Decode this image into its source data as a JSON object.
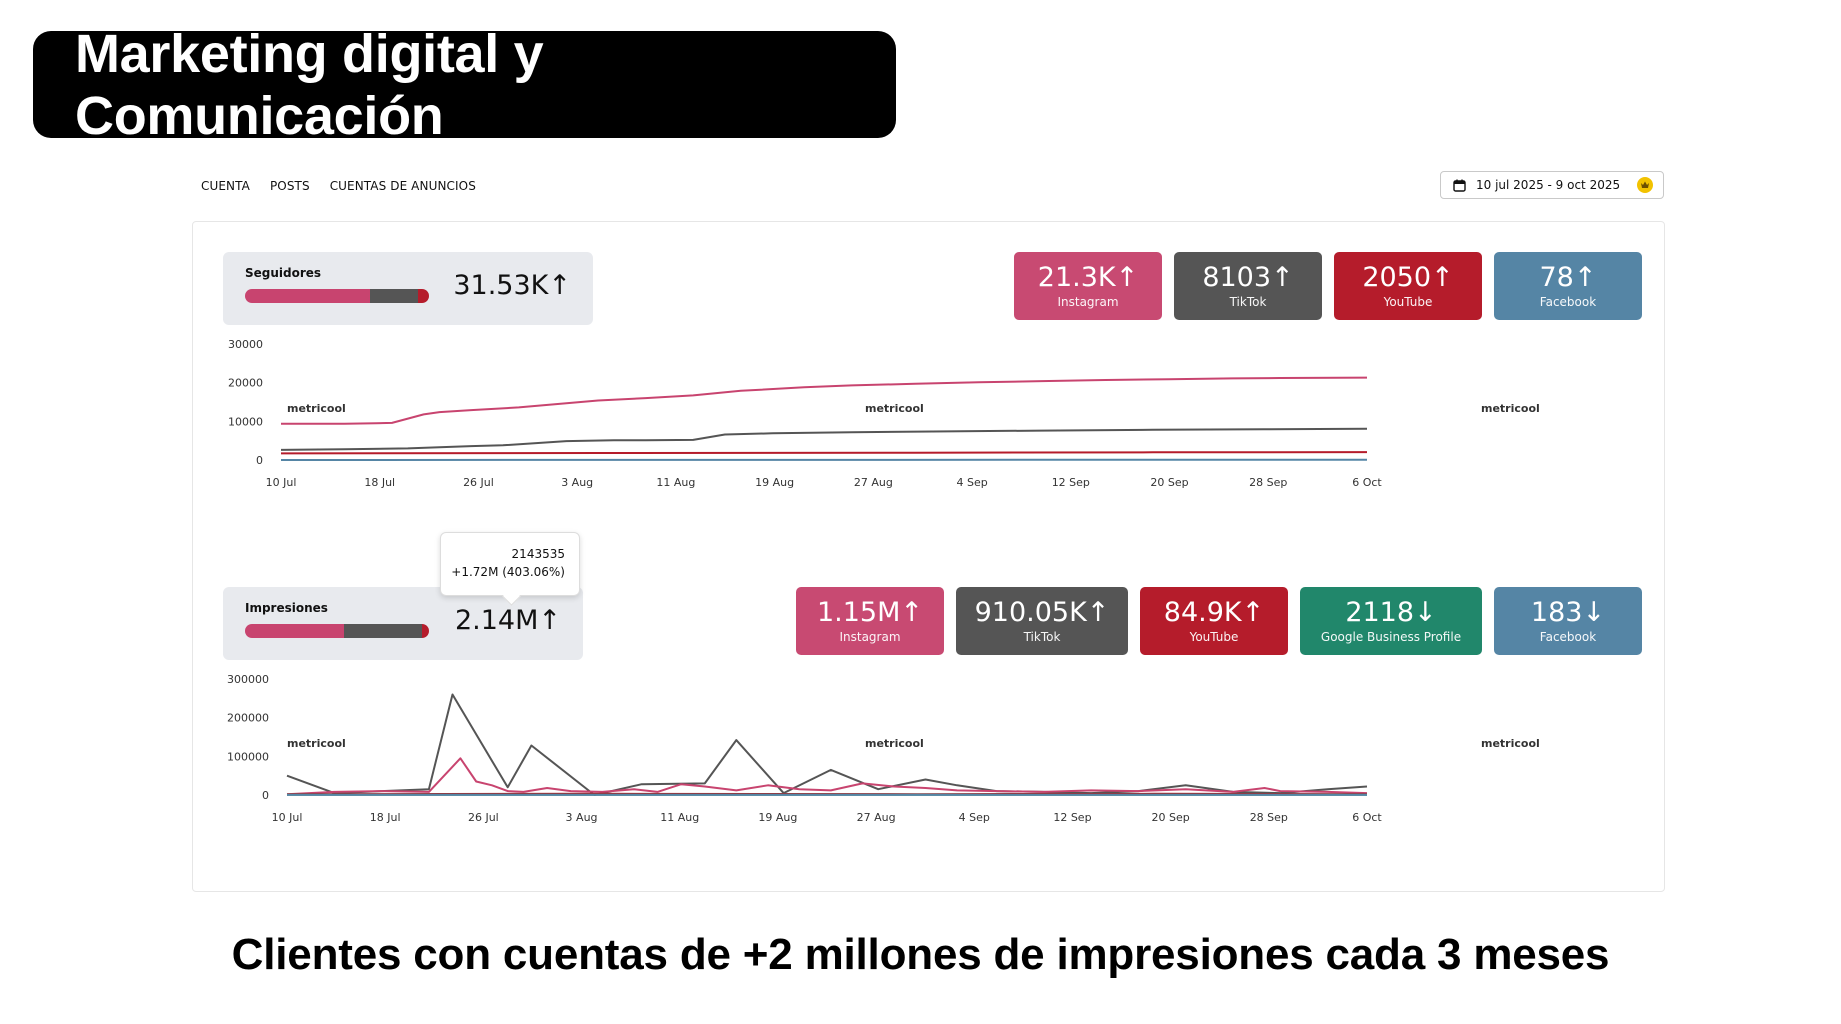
{
  "header": {
    "title": "Marketing digital y Comunicación"
  },
  "nav": {
    "tabs": [
      "CUENTA",
      "POSTS",
      "CUENTAS DE ANUNCIOS"
    ]
  },
  "date_range": {
    "label": "10 jul 2025 - 9 oct 2025"
  },
  "watermark": "metricool",
  "followers": {
    "label": "Seguidores",
    "total": "31.53K",
    "arrow": "↑",
    "bar_share": [
      0.68,
      0.26,
      0.06
    ],
    "bar_colors": [
      "#c8446f",
      "#555555",
      "#b51c2b"
    ],
    "cards": [
      {
        "value": "21.3K",
        "arrow": "↑",
        "network": "Instagram",
        "color": "#c84a72"
      },
      {
        "value": "8103",
        "arrow": "↑",
        "network": "TikTok",
        "color": "#555555"
      },
      {
        "value": "2050",
        "arrow": "↑",
        "network": "YouTube",
        "color": "#b51c2b"
      },
      {
        "value": "78",
        "arrow": "↑",
        "network": "Facebook",
        "color": "#5585a5"
      }
    ]
  },
  "impressions": {
    "label": "Impresiones",
    "total": "2.14M",
    "arrow": "↑",
    "bar_share": [
      0.54,
      0.42,
      0.04
    ],
    "bar_colors": [
      "#c8446f",
      "#555555",
      "#b51c2b"
    ],
    "tooltip": {
      "value": "2143535",
      "change": "+1.72M (403.06%)"
    },
    "cards": [
      {
        "value": "1.15M",
        "arrow": "↑",
        "network": "Instagram",
        "color": "#c84a72"
      },
      {
        "value": "910.05K",
        "arrow": "↑",
        "network": "TikTok",
        "color": "#555555"
      },
      {
        "value": "84.9K",
        "arrow": "↑",
        "network": "YouTube",
        "color": "#b51c2b"
      },
      {
        "value": "2118",
        "arrow": "↓",
        "network": "Google Business Profile",
        "color": "#21876b"
      },
      {
        "value": "183",
        "arrow": "↓",
        "network": "Facebook",
        "color": "#5585a5"
      }
    ]
  },
  "chart_data": [
    {
      "type": "line",
      "x_ticks": [
        "10 Jul",
        "18 Jul",
        "26 Jul",
        "3 Aug",
        "11 Aug",
        "19 Aug",
        "27 Aug",
        "4 Sep",
        "12 Sep",
        "20 Sep",
        "28 Sep",
        "6 Oct"
      ],
      "ylim": [
        0,
        30000
      ],
      "y_ticks": [
        "0",
        "10000",
        "20000",
        "30000"
      ],
      "grid": false,
      "series": [
        {
          "name": "Instagram",
          "color": "#c8446f",
          "x": [
            0,
            8,
            12,
            14,
            18,
            20,
            24,
            30,
            36,
            40,
            46,
            52,
            58,
            66,
            72,
            80,
            88,
            96,
            104,
            112,
            120,
            126,
            137
          ],
          "y": [
            9400,
            9400,
            9500,
            9600,
            11800,
            12400,
            12900,
            13600,
            14700,
            15400,
            16000,
            16700,
            17900,
            18800,
            19300,
            19700,
            20100,
            20400,
            20700,
            20900,
            21100,
            21200,
            21300
          ]
        },
        {
          "name": "TikTok",
          "color": "#555555",
          "x": [
            0,
            8,
            16,
            20,
            24,
            28,
            36,
            42,
            46,
            52,
            56,
            62,
            72,
            84,
            96,
            110,
            124,
            137
          ],
          "y": [
            2600,
            2800,
            3000,
            3300,
            3600,
            3800,
            4900,
            5100,
            5100,
            5200,
            6600,
            6900,
            7200,
            7400,
            7600,
            7800,
            7950,
            8100
          ]
        },
        {
          "name": "YouTube",
          "color": "#b51c2b",
          "x": [
            0,
            40,
            80,
            110,
            137
          ],
          "y": [
            1700,
            1800,
            1900,
            2000,
            2050
          ]
        },
        {
          "name": "Facebook",
          "color": "#5585a5",
          "x": [
            0,
            137
          ],
          "y": [
            0,
            80
          ]
        }
      ]
    },
    {
      "type": "line",
      "x_ticks": [
        "10 Jul",
        "18 Jul",
        "26 Jul",
        "3 Aug",
        "11 Aug",
        "19 Aug",
        "27 Aug",
        "4 Sep",
        "12 Sep",
        "20 Sep",
        "28 Sep",
        "6 Oct"
      ],
      "ylim": [
        0,
        300000
      ],
      "y_ticks": [
        "0",
        "100000",
        "200000",
        "300000"
      ],
      "grid": false,
      "series": [
        {
          "name": "TikTok",
          "color": "#555555",
          "x": [
            0,
            6,
            12,
            18,
            21,
            28,
            31,
            39,
            45,
            53,
            57,
            63,
            69,
            75,
            81,
            85,
            90,
            96,
            102,
            108,
            114,
            120,
            126,
            132,
            137
          ],
          "y": [
            50000,
            5000,
            10000,
            15000,
            260000,
            20000,
            128000,
            0,
            28000,
            30000,
            142000,
            5000,
            65000,
            15000,
            40000,
            25000,
            10000,
            8000,
            5000,
            10000,
            25000,
            8000,
            5000,
            15000,
            22000
          ]
        },
        {
          "name": "Instagram",
          "color": "#c8446f",
          "x": [
            0,
            6,
            12,
            18,
            22,
            24,
            26,
            28,
            30,
            33,
            36,
            40,
            44,
            47,
            50,
            53,
            57,
            61,
            65,
            69,
            73,
            77,
            81,
            85,
            90,
            96,
            102,
            108,
            114,
            120,
            124,
            126,
            132,
            137
          ],
          "y": [
            2000,
            8000,
            10000,
            8000,
            95000,
            35000,
            25000,
            10000,
            8000,
            18000,
            10000,
            8000,
            15000,
            8000,
            28000,
            22000,
            12000,
            25000,
            15000,
            12000,
            30000,
            22000,
            18000,
            12000,
            10000,
            8000,
            12000,
            10000,
            15000,
            8000,
            18000,
            10000,
            8000,
            5000
          ]
        },
        {
          "name": "YouTube",
          "color": "#b51c2b",
          "x": [
            0,
            40,
            80,
            110,
            137
          ],
          "y": [
            2000,
            3000,
            2000,
            3000,
            2000
          ]
        },
        {
          "name": "Google Business Profile",
          "color": "#21876b",
          "x": [
            0,
            137
          ],
          "y": [
            500,
            500
          ]
        },
        {
          "name": "Facebook",
          "color": "#5585a5",
          "x": [
            0,
            137
          ],
          "y": [
            200,
            200
          ]
        }
      ]
    }
  ],
  "footer": {
    "caption": "Clientes con cuentas de +2 millones de impresiones cada 3 meses"
  }
}
